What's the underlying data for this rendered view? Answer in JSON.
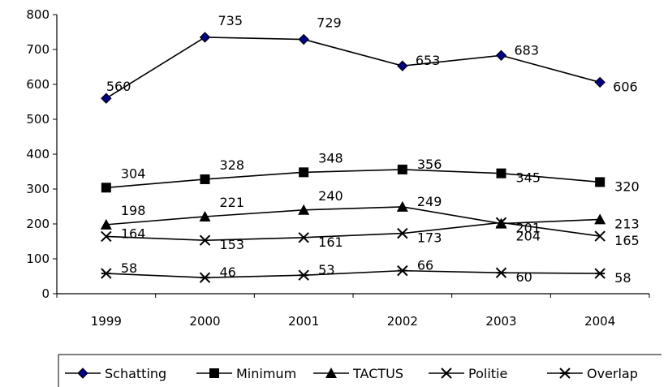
{
  "chart_data": {
    "type": "line",
    "title": "",
    "xlabel": "",
    "ylabel": "",
    "categories": [
      "1999",
      "2000",
      "2001",
      "2002",
      "2003",
      "2004"
    ],
    "ylim": [
      0,
      800
    ],
    "yticks": [
      "0",
      "100",
      "200",
      "300",
      "400",
      "500",
      "600",
      "700",
      "800"
    ],
    "grid": false,
    "legend": "bottom",
    "series": [
      {
        "name": "Schatting",
        "marker": "diamond",
        "color": "#000080",
        "values": [
          560,
          735,
          729,
          653,
          683,
          606
        ],
        "labels": [
          "560",
          "735",
          "729",
          "653",
          "683",
          "606"
        ]
      },
      {
        "name": "Minimum",
        "marker": "square",
        "color": "#000000",
        "values": [
          304,
          328,
          348,
          356,
          345,
          320
        ],
        "labels": [
          "304",
          "328",
          "348",
          "356",
          "345",
          "320"
        ]
      },
      {
        "name": "TACTUS",
        "marker": "triangle",
        "color": "#000000",
        "values": [
          198,
          221,
          240,
          249,
          201,
          213
        ],
        "labels": [
          "198",
          "221",
          "240",
          "249",
          "201",
          "213"
        ]
      },
      {
        "name": "Politie",
        "marker": "x",
        "color": "#000000",
        "values": [
          164,
          153,
          161,
          173,
          204,
          165
        ],
        "labels": [
          "164",
          "153",
          "161",
          "173",
          "204",
          "165"
        ]
      },
      {
        "name": "Overlap",
        "marker": "asterisk",
        "color": "#000000",
        "values": [
          58,
          46,
          53,
          66,
          60,
          58
        ],
        "labels": [
          "58",
          "46",
          "53",
          "66",
          "60",
          "58"
        ]
      }
    ]
  }
}
